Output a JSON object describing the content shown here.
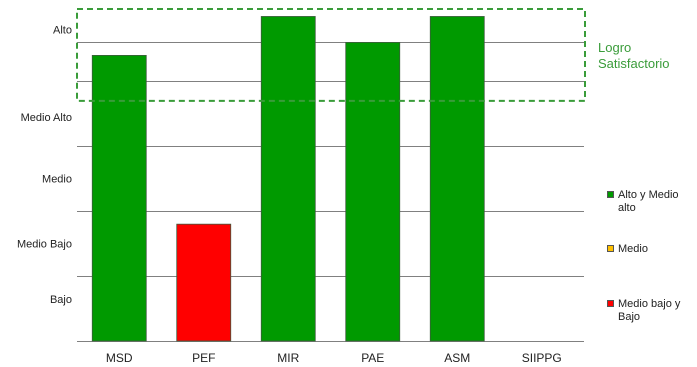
{
  "chart_data": {
    "type": "bar",
    "categories": [
      "MSD",
      "PEF",
      "MIR",
      "PAE",
      "ASM",
      "SIIPPG"
    ],
    "values": [
      4.4,
      1.8,
      5.0,
      4.6,
      5.0,
      null
    ],
    "bar_colors": [
      "#009a00",
      "#ff0000",
      "#009a00",
      "#009a00",
      "#009a00",
      null
    ],
    "y_levels": [
      "Bajo",
      "Medio Bajo",
      "Medio",
      "Medio  Alto",
      "Alto"
    ],
    "ylim": [
      0,
      5.3
    ],
    "grid": true,
    "highlight_band": {
      "label": [
        "Logro",
        "Satisfactorio"
      ],
      "range": [
        3.7,
        5.3
      ],
      "color": "#3a9c3a"
    },
    "legend": [
      {
        "label": "Alto y Medio alto",
        "color": "#009a00"
      },
      {
        "label": "Medio",
        "color": "#ffc000"
      },
      {
        "label": "Medio bajo y Bajo",
        "color": "#ff0000"
      }
    ],
    "legend_position": "right"
  }
}
